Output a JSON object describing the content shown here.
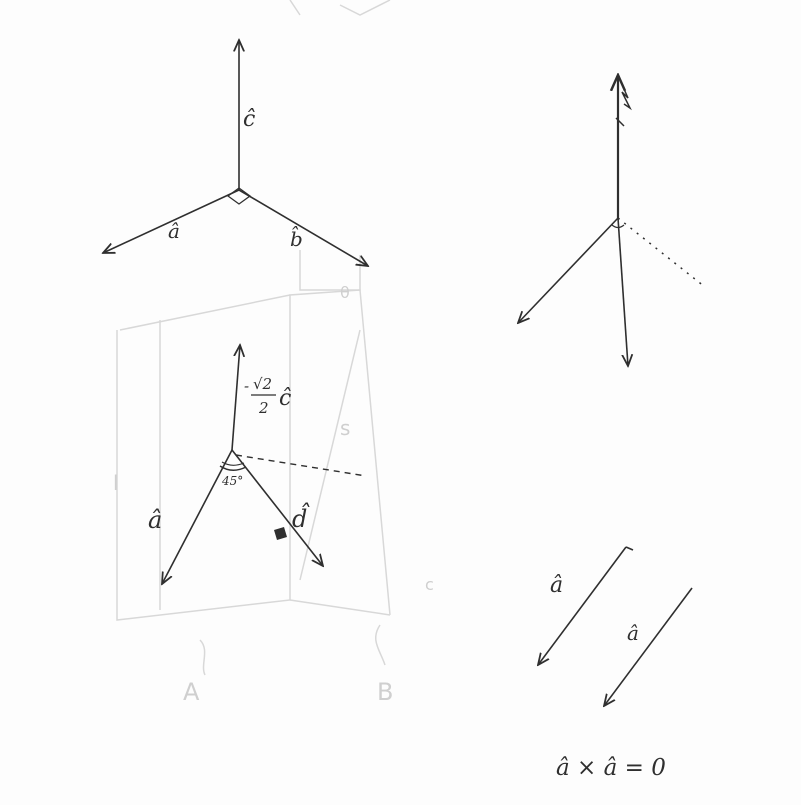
{
  "sketch_1": {
    "c_label": "ĉ",
    "a_label": "â",
    "b_label": "b̂"
  },
  "sketch_3": {
    "c_coefficient_num": "√2",
    "c_coefficient_den": "2",
    "c_coefficient_sign": "-",
    "c_label": "ĉ",
    "a_label": "â",
    "d_label": "d̂",
    "angle_label": "45°"
  },
  "sketch_4": {
    "a_label_1": "â",
    "a_label_2": "â",
    "equation": "â × â = 0"
  },
  "background_ghost": {
    "letter_a": "A",
    "letter_b": "B",
    "letter_l": "l",
    "letter_s": "s",
    "letter_c": "c",
    "theta": "θ"
  },
  "colors": {
    "ink": "#2f2f2f",
    "ghost": "#d0d0d0",
    "paper": "#fdfdfd"
  }
}
